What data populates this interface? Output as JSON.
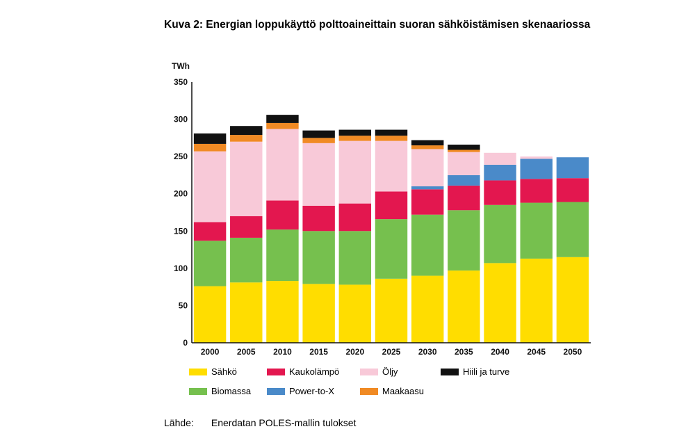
{
  "chart_data": {
    "type": "bar",
    "stacked": true,
    "title": "Kuva 2: Energian loppukäyttö polttoaineittain suoran sähköistämisen skenaariossa",
    "ylabel": "TWh",
    "xlabel": "",
    "ylim": [
      0,
      350
    ],
    "yticks": [
      0,
      50,
      100,
      150,
      200,
      250,
      300,
      350
    ],
    "categories": [
      "2000",
      "2005",
      "2010",
      "2015",
      "2020",
      "2025",
      "2030",
      "2035",
      "2040",
      "2045",
      "2050"
    ],
    "series": [
      {
        "name": "Sähkö",
        "color": "#FFDD00",
        "values": [
          76,
          81,
          83,
          79,
          78,
          86,
          90,
          97,
          107,
          113,
          115
        ]
      },
      {
        "name": "Biomassa",
        "color": "#76C04E",
        "values": [
          61,
          60,
          69,
          71,
          72,
          80,
          82,
          81,
          78,
          75,
          74
        ]
      },
      {
        "name": "Kaukolämpö",
        "color": "#E3174F",
        "values": [
          25,
          29,
          39,
          34,
          37,
          37,
          34,
          33,
          33,
          32,
          32
        ]
      },
      {
        "name": "Power-to-X",
        "color": "#4A8AC9",
        "values": [
          0,
          0,
          0,
          0,
          0,
          0,
          4,
          14,
          21,
          27,
          28
        ]
      },
      {
        "name": "Öljy",
        "color": "#F8C9D8",
        "values": [
          95,
          100,
          96,
          84,
          84,
          68,
          50,
          31,
          16,
          3,
          0
        ]
      },
      {
        "name": "Maakaasu",
        "color": "#F08A24",
        "values": [
          10,
          9,
          8,
          7,
          7,
          7,
          5,
          3,
          0,
          0,
          0
        ]
      },
      {
        "name": "Hiili ja turve",
        "color": "#111111",
        "values": [
          14,
          12,
          11,
          10,
          8,
          8,
          7,
          7,
          0,
          0,
          0
        ]
      }
    ],
    "legend": {
      "placement": "bottom",
      "rows": [
        [
          "Sähkö",
          "Kaukolämpö",
          "Öljy",
          "Hiili ja turve"
        ],
        [
          "Biomassa",
          "Power-to-X",
          "Maakaasu"
        ]
      ]
    },
    "grid": false
  },
  "source": {
    "label": "Lähde:",
    "text": "Enerdatan POLES-mallin tulokset"
  }
}
